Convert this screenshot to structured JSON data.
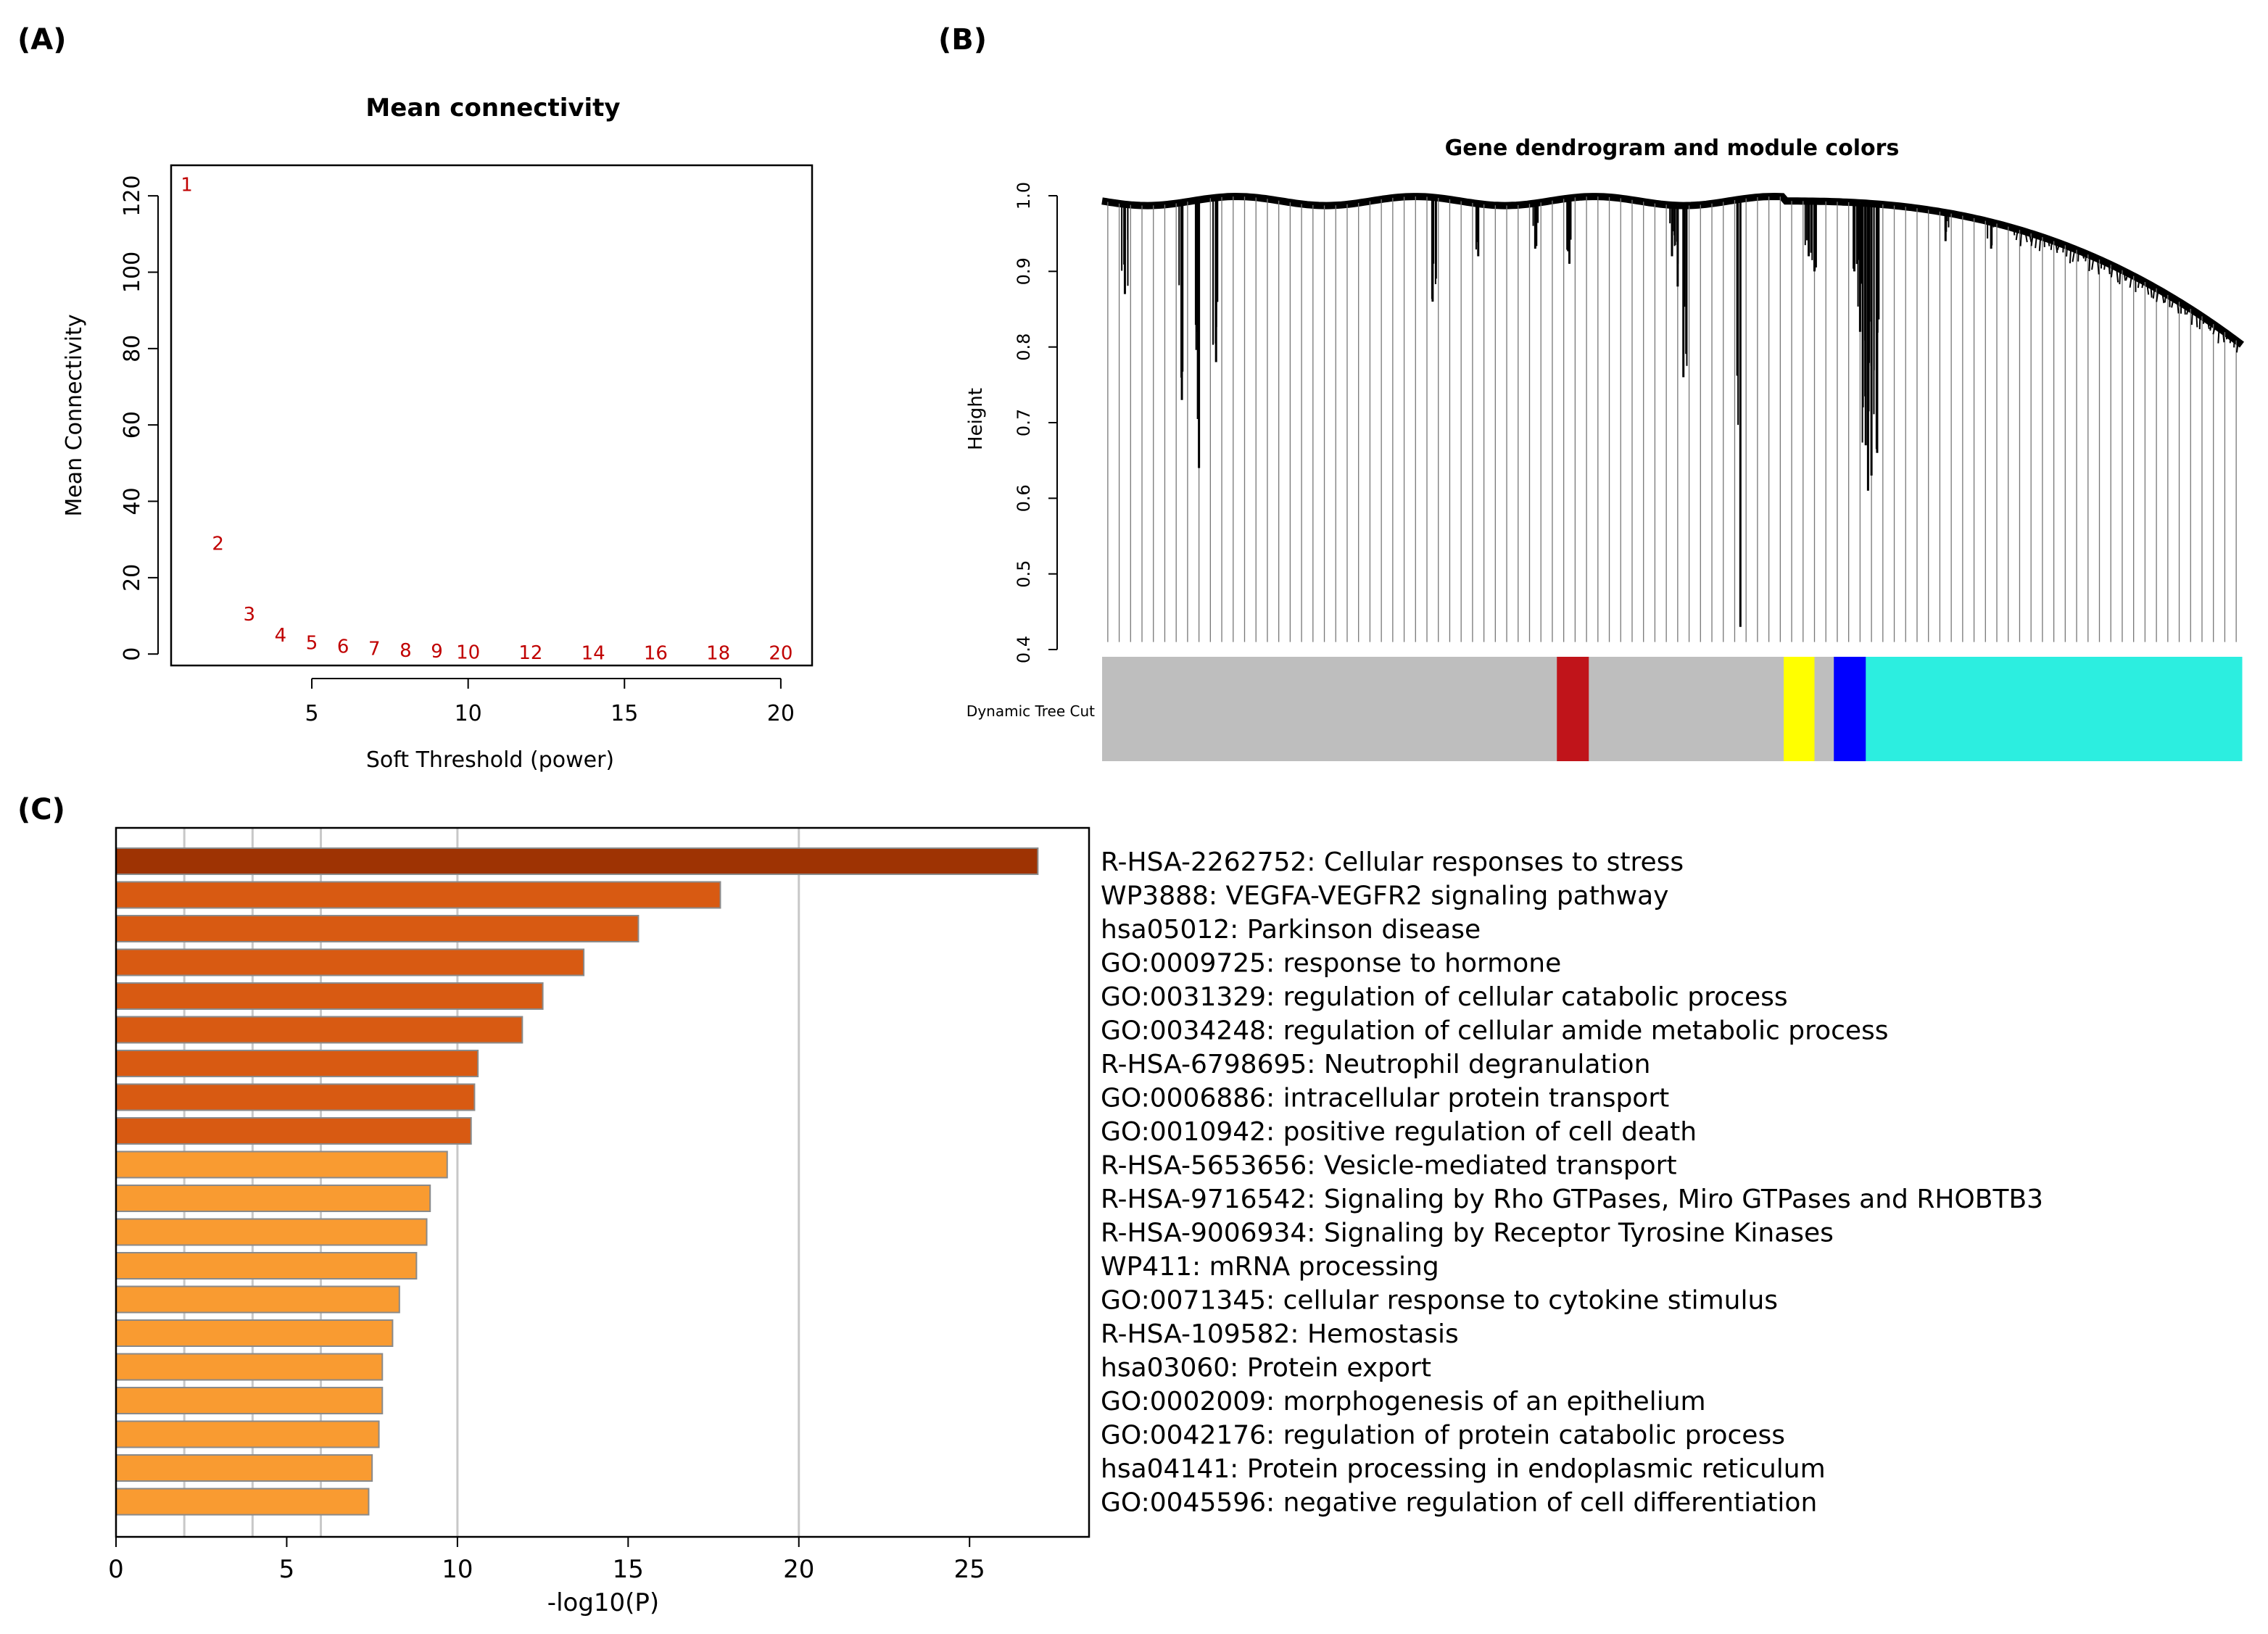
{
  "panels": {
    "a": "(A)",
    "b": "(B)",
    "c": "(C)"
  },
  "colors": {
    "scatter_points": "#c00000",
    "bar_dark": "#9e3303",
    "bar_mid": "#d85a12",
    "bar_light": "#f99b31",
    "module_grey": "#bebebe",
    "module_red": "#c0141a",
    "module_yellow": "#ffff00",
    "module_blue": "#0000ff",
    "module_turquoise": "#2ceee0"
  },
  "chart_data": [
    {
      "id": "mean_connectivity",
      "type": "scatter",
      "title": "Mean connectivity",
      "xlabel": "Soft Threshold (power)",
      "ylabel": "Mean Connectivity",
      "xlim": [
        0.5,
        21
      ],
      "ylim": [
        -3,
        128
      ],
      "xticks": [
        5,
        10,
        15,
        20
      ],
      "yticks": [
        0,
        20,
        40,
        60,
        80,
        100,
        120
      ],
      "points": [
        {
          "x": 1,
          "y": 123,
          "label": "1"
        },
        {
          "x": 2,
          "y": 29,
          "label": "2"
        },
        {
          "x": 3,
          "y": 10.5,
          "label": "3"
        },
        {
          "x": 4,
          "y": 5,
          "label": "4"
        },
        {
          "x": 5,
          "y": 3,
          "label": "5"
        },
        {
          "x": 6,
          "y": 2,
          "label": "6"
        },
        {
          "x": 7,
          "y": 1.5,
          "label": "7"
        },
        {
          "x": 8,
          "y": 1,
          "label": "8"
        },
        {
          "x": 9,
          "y": 0.8,
          "label": "9"
        },
        {
          "x": 10,
          "y": 0.5,
          "label": "10"
        },
        {
          "x": 12,
          "y": 0.4,
          "label": "12"
        },
        {
          "x": 14,
          "y": 0.3,
          "label": "14"
        },
        {
          "x": 16,
          "y": 0.3,
          "label": "16"
        },
        {
          "x": 18,
          "y": 0.3,
          "label": "18"
        },
        {
          "x": 20,
          "y": 0.3,
          "label": "20"
        }
      ]
    },
    {
      "id": "gene_dendrogram",
      "type": "dendrogram",
      "title": "Gene dendrogram and module colors",
      "ylabel": "Height",
      "ylim": [
        0.4,
        1.0
      ],
      "yticks": [
        "0.4",
        "0.5",
        "0.6",
        "0.7",
        "0.8",
        "0.9",
        "1.0"
      ],
      "color_row_label": "Dynamic Tree Cut",
      "modules": [
        {
          "color": "grey",
          "start": 0.0,
          "end": 0.399
        },
        {
          "color": "red",
          "start": 0.399,
          "end": 0.427
        },
        {
          "color": "grey",
          "start": 0.427,
          "end": 0.598
        },
        {
          "color": "yellow",
          "start": 0.598,
          "end": 0.625
        },
        {
          "color": "grey",
          "start": 0.625,
          "end": 0.642
        },
        {
          "color": "blue",
          "start": 0.642,
          "end": 0.67
        },
        {
          "color": "turquoise",
          "start": 0.67,
          "end": 1.0
        }
      ]
    },
    {
      "id": "enrichment",
      "type": "bar",
      "orientation": "horizontal",
      "xlabel": "-log10(P)",
      "xlim": [
        0,
        28.5
      ],
      "xticks": [
        0,
        5,
        10,
        15,
        20,
        25
      ],
      "gridlines": [
        2,
        4,
        6,
        10,
        20
      ],
      "categories": [
        "R-HSA-2262752: Cellular responses to stress",
        "WP3888: VEGFA-VEGFR2 signaling pathway",
        "hsa05012: Parkinson disease",
        "GO:0009725: response to hormone",
        "GO:0031329: regulation of cellular catabolic process",
        "GO:0034248: regulation of cellular amide metabolic process",
        "R-HSA-6798695: Neutrophil degranulation",
        "GO:0006886: intracellular protein transport",
        "GO:0010942: positive regulation of cell death",
        "R-HSA-5653656: Vesicle-mediated transport",
        "R-HSA-9716542: Signaling by Rho GTPases, Miro GTPases and RHOBTB3",
        "R-HSA-9006934: Signaling by Receptor Tyrosine Kinases",
        "WP411: mRNA processing",
        "GO:0071345: cellular response to cytokine stimulus",
        "R-HSA-109582: Hemostasis",
        "hsa03060: Protein export",
        "GO:0002009: morphogenesis of an epithelium",
        "GO:0042176: regulation of protein catabolic process",
        "hsa04141: Protein processing in endoplasmic reticulum",
        "GO:0045596: negative regulation of cell differentiation"
      ],
      "values": [
        27.0,
        17.7,
        15.3,
        13.7,
        12.5,
        11.9,
        10.6,
        10.5,
        10.4,
        9.7,
        9.2,
        9.1,
        8.8,
        8.3,
        8.1,
        7.8,
        7.8,
        7.7,
        7.5,
        7.4
      ],
      "tiers": [
        "dark",
        "mid",
        "mid",
        "mid",
        "mid",
        "mid",
        "mid",
        "mid",
        "mid",
        "light",
        "light",
        "light",
        "light",
        "light",
        "light",
        "light",
        "light",
        "light",
        "light",
        "light"
      ]
    }
  ]
}
